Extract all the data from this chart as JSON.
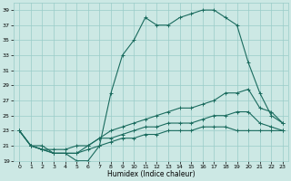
{
  "xlabel": "Humidex (Indice chaleur)",
  "xlim": [
    -0.5,
    23.5
  ],
  "ylim": [
    19,
    40
  ],
  "yticks": [
    19,
    21,
    23,
    25,
    27,
    29,
    31,
    33,
    35,
    37,
    39
  ],
  "xticks": [
    0,
    1,
    2,
    3,
    4,
    5,
    6,
    7,
    8,
    9,
    10,
    11,
    12,
    13,
    14,
    15,
    16,
    17,
    18,
    19,
    20,
    21,
    22,
    23
  ],
  "background_color": "#cce8e4",
  "grid_color": "#99ccc8",
  "line_color": "#1a6b5e",
  "line1": [
    23,
    21,
    21,
    20,
    20,
    19,
    19,
    21,
    28,
    33,
    35,
    38,
    37,
    37,
    38,
    38.5,
    39,
    39,
    38,
    37,
    32,
    28,
    25,
    24
  ],
  "line2": [
    23,
    21,
    20.5,
    20.5,
    20.5,
    21,
    21,
    22,
    23,
    23.5,
    24,
    24.5,
    25,
    25.5,
    26,
    26,
    26.5,
    27,
    28,
    28,
    28.5,
    26,
    25.5,
    24
  ],
  "line3": [
    23,
    21,
    20.5,
    20,
    20,
    20,
    20.5,
    21,
    21.5,
    22,
    22,
    22.5,
    22.5,
    23,
    23,
    23,
    23.5,
    23.5,
    23.5,
    23,
    23,
    23,
    23,
    23
  ],
  "line4": [
    23,
    21,
    20.5,
    20,
    20,
    20,
    21,
    22,
    22,
    22.5,
    23,
    23.5,
    23.5,
    24,
    24,
    24,
    24.5,
    25,
    25,
    25.5,
    25.5,
    24,
    23.5,
    23
  ]
}
